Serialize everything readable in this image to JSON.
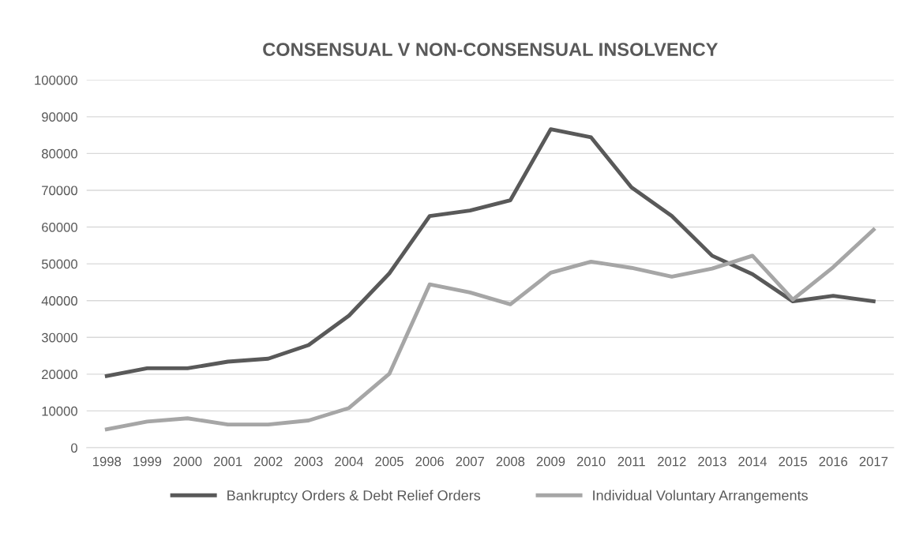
{
  "chart_data": {
    "type": "line",
    "title": "CONSENSUAL V NON-CONSENSUAL INSOLVENCY",
    "categories": [
      "1998",
      "1999",
      "2000",
      "2001",
      "2002",
      "2003",
      "2004",
      "2005",
      "2006",
      "2007",
      "2008",
      "2009",
      "2010",
      "2011",
      "2012",
      "2013",
      "2014",
      "2015",
      "2016",
      "2017"
    ],
    "series": [
      {
        "name": "Bankruptcy Orders & Debt Relief Orders",
        "color": "#595959",
        "values": [
          19500,
          21600,
          21600,
          23400,
          24200,
          27900,
          35900,
          47400,
          63000,
          64500,
          67300,
          86600,
          84400,
          70800,
          63000,
          52200,
          47200,
          39800,
          41300,
          39800
        ]
      },
      {
        "name": "Individual Voluntary Arrangements",
        "color": "#a6a6a6",
        "values": [
          5000,
          7100,
          8000,
          6300,
          6300,
          7400,
          10800,
          20100,
          44400,
          42200,
          39000,
          47600,
          50600,
          48900,
          46500,
          48700,
          52200,
          40300,
          49100,
          59300
        ]
      }
    ],
    "ylim": [
      0,
      100000
    ],
    "yticks": [
      0,
      10000,
      20000,
      30000,
      40000,
      50000,
      60000,
      70000,
      80000,
      90000,
      100000
    ],
    "grid": "y",
    "legend": "bottom",
    "marker": "none",
    "line_style": "solid"
  }
}
